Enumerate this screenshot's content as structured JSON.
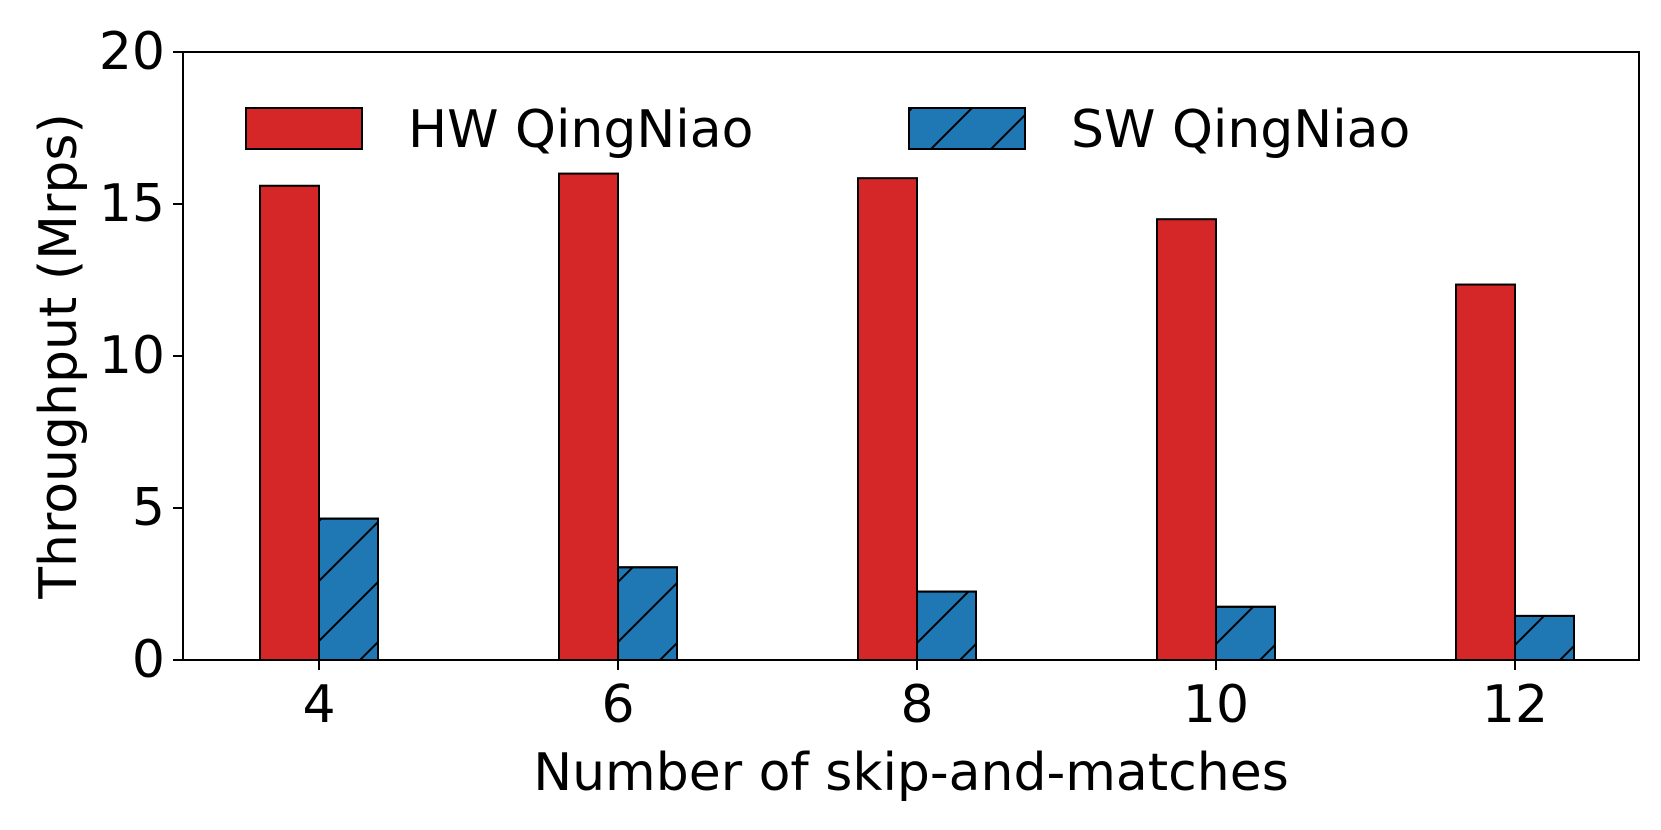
{
  "chart_data": {
    "type": "bar",
    "title": "",
    "xlabel": "Number of skip-and-matches",
    "ylabel": "Throughput (Mrps)",
    "categories": [
      "4",
      "6",
      "8",
      "10",
      "12"
    ],
    "ylim": [
      0,
      20
    ],
    "yticks": [
      "0",
      "5",
      "10",
      "15",
      "20"
    ],
    "grid": false,
    "legend_position": "top",
    "series": [
      {
        "name": "HW QingNiao",
        "values": [
          15.6,
          16.0,
          15.85,
          14.5,
          12.35
        ],
        "color": "#d62728",
        "hatch": false
      },
      {
        "name": "SW QingNiao",
        "values": [
          4.65,
          3.05,
          2.25,
          1.75,
          1.45
        ],
        "color": "#1f77b4",
        "hatch": true
      }
    ]
  }
}
